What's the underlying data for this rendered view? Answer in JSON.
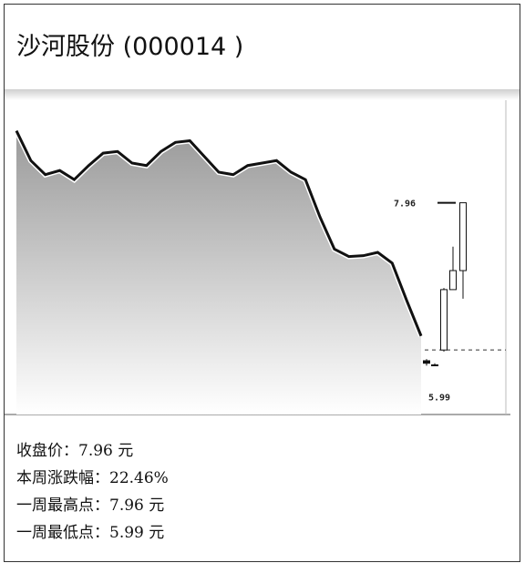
{
  "chart_data": {
    "type": "line-candlestick",
    "title": "沙河股份 (000014 )",
    "ylim": [
      5.4,
      9.2
    ],
    "reference_line": 6.18,
    "series": [
      {
        "color": "#111111",
        "values": [
          8.83,
          8.47,
          8.3,
          8.35,
          8.24,
          8.41,
          8.56,
          8.58,
          8.44,
          8.41,
          8.58,
          8.69,
          8.71,
          8.52,
          8.33,
          8.3,
          8.41,
          8.44,
          8.47,
          8.33,
          8.24,
          7.79,
          7.4,
          7.31,
          7.32,
          7.36,
          7.23,
          6.78,
          6.35
        ]
      }
    ],
    "candles": [
      {
        "open": 6.05,
        "high": 6.07,
        "low": 5.99,
        "close": 6.02
      },
      {
        "open": 6.0,
        "high": 6.02,
        "low": 5.99,
        "close": 6.0
      },
      {
        "open": 6.18,
        "high": 6.93,
        "low": 6.16,
        "close": 6.91
      },
      {
        "open": 6.91,
        "high": 7.43,
        "low": 6.91,
        "close": 7.14
      },
      {
        "open": 7.14,
        "high": 7.96,
        "low": 6.8,
        "close": 7.96
      }
    ],
    "annotations": [
      {
        "text": "7.96",
        "value": 7.96
      },
      {
        "text": "5.99",
        "value": 5.99
      }
    ],
    "stats": [
      "收盘价：7.96 元",
      "本周涨跌幅：22.46%",
      "一周最高点：7.96 元",
      "一周最低点：5.99 元"
    ]
  }
}
